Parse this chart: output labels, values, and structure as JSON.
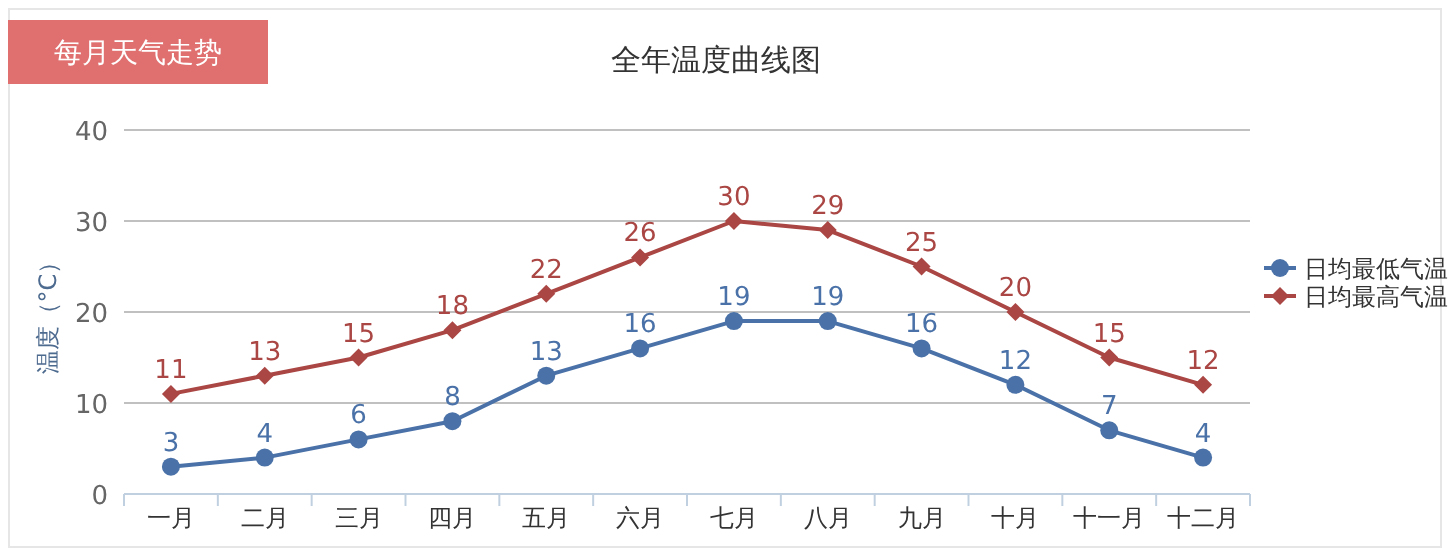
{
  "chart_data": {
    "type": "line",
    "title": "全年温度曲线图",
    "subtitle": "每月天气走势",
    "ylabel": "温度（°C）",
    "categories": [
      "一月",
      "二月",
      "三月",
      "四月",
      "五月",
      "六月",
      "七月",
      "八月",
      "九月",
      "十月",
      "十一月",
      "十二月"
    ],
    "series": [
      {
        "name": "日均最低气温",
        "color": "#4a72a8",
        "marker": "circle",
        "values": [
          3,
          4,
          6,
          8,
          13,
          16,
          19,
          19,
          16,
          12,
          7,
          4
        ]
      },
      {
        "name": "日均最高气温",
        "color": "#aa4643",
        "marker": "diamond",
        "values": [
          11,
          13,
          15,
          18,
          22,
          26,
          30,
          29,
          25,
          20,
          15,
          12
        ]
      }
    ],
    "ylim": [
      0,
      40
    ],
    "yticks": [
      0,
      10,
      20,
      30,
      40
    ],
    "grid": "y",
    "legend": "right",
    "data_labels": true
  }
}
